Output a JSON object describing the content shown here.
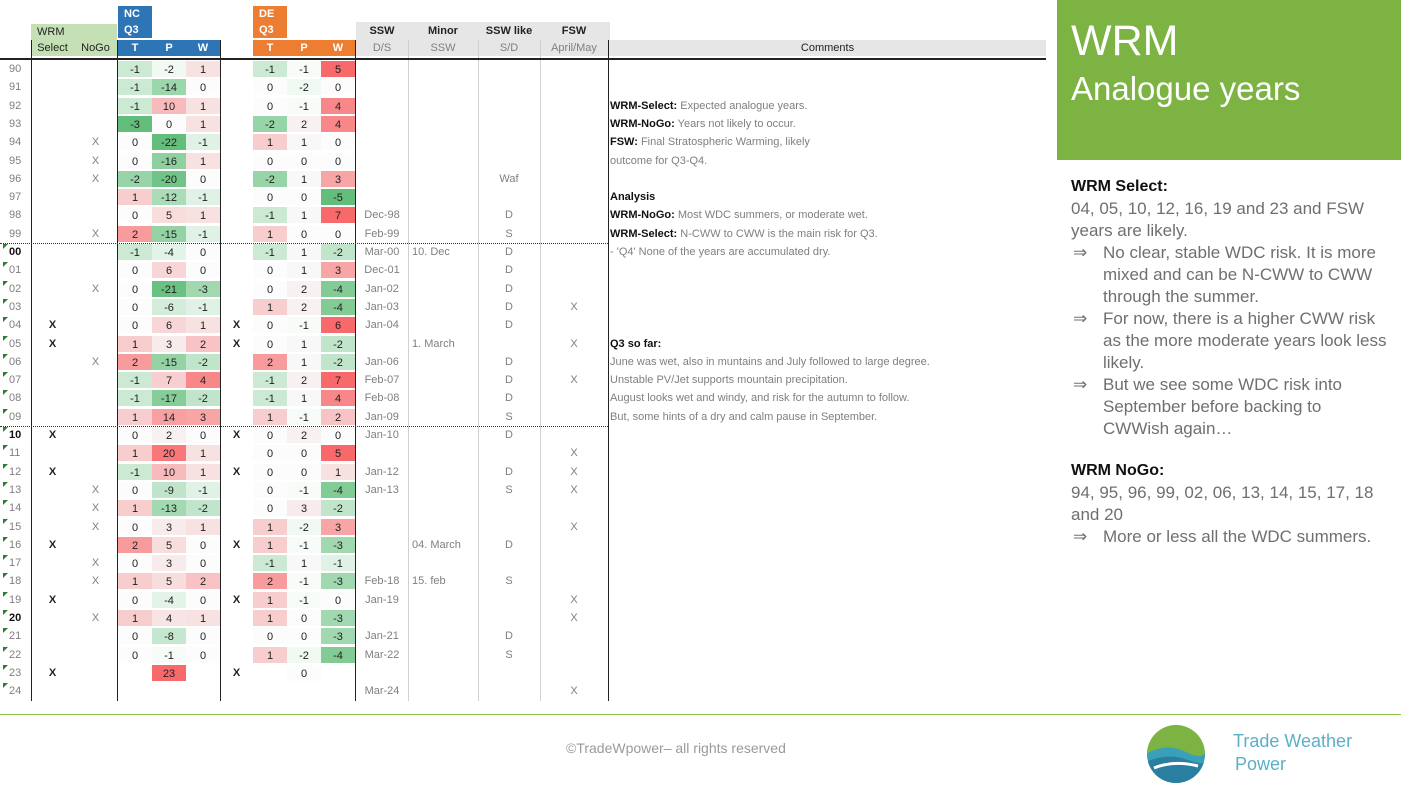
{
  "header": {
    "wrm": "WRM",
    "select": "Select",
    "nogo": "NoGo",
    "nc": "NC",
    "de": "DE",
    "q3": "Q3",
    "t": "T",
    "p": "P",
    "w": "W",
    "ssw": "SSW",
    "ssw_sub": "D/S",
    "minor": "Minor",
    "minor_sub": "SSW",
    "sswlike": "SSW like",
    "sswlike_sub": "S/D",
    "fsw": "FSW",
    "fsw_sub": "April/May",
    "comments": "Comments"
  },
  "colors": {
    "nc_header": "#2e75b6",
    "de_header": "#ed7d31",
    "wrm_header": "#c5e0b4",
    "dry": "#63be7b",
    "wet": "#f8696b",
    "accent": "#7cb342"
  },
  "rows": [
    {
      "year": "90",
      "sel": "",
      "nogo": "",
      "nc": [
        "-1",
        "-2",
        "1"
      ],
      "dsel": "",
      "de": [
        "-1",
        "-1",
        "5"
      ],
      "ssw": "",
      "minor": "",
      "sswlike": "",
      "fsw": ""
    },
    {
      "year": "91",
      "sel": "",
      "nogo": "",
      "nc": [
        "-1",
        "-14",
        "0"
      ],
      "dsel": "",
      "de": [
        "0",
        "-2",
        "0"
      ],
      "ssw": "",
      "minor": "",
      "sswlike": "",
      "fsw": ""
    },
    {
      "year": "92",
      "sel": "",
      "nogo": "",
      "nc": [
        "-1",
        "10",
        "1"
      ],
      "dsel": "",
      "de": [
        "0",
        "-1",
        "4"
      ],
      "ssw": "",
      "minor": "",
      "sswlike": "",
      "fsw": ""
    },
    {
      "year": "93",
      "sel": "",
      "nogo": "",
      "nc": [
        "-3",
        "0",
        "1"
      ],
      "dsel": "",
      "de": [
        "-2",
        "2",
        "4"
      ],
      "ssw": "",
      "minor": "",
      "sswlike": "",
      "fsw": ""
    },
    {
      "year": "94",
      "sel": "",
      "nogo": "X",
      "nc": [
        "0",
        "-22",
        "-1"
      ],
      "dsel": "",
      "de": [
        "1",
        "1",
        "0"
      ],
      "ssw": "",
      "minor": "",
      "sswlike": "",
      "fsw": ""
    },
    {
      "year": "95",
      "sel": "",
      "nogo": "X",
      "nc": [
        "0",
        "-16",
        "1"
      ],
      "dsel": "",
      "de": [
        "0",
        "0",
        "0"
      ],
      "ssw": "",
      "minor": "",
      "sswlike": "",
      "fsw": ""
    },
    {
      "year": "96",
      "sel": "",
      "nogo": "X",
      "nc": [
        "-2",
        "-20",
        "0"
      ],
      "dsel": "",
      "de": [
        "-2",
        "1",
        "3"
      ],
      "ssw": "",
      "minor": "",
      "sswlike": "Waf",
      "fsw": ""
    },
    {
      "year": "97",
      "sel": "",
      "nogo": "",
      "nc": [
        "1",
        "-12",
        "-1"
      ],
      "dsel": "",
      "de": [
        "0",
        "0",
        "-5"
      ],
      "ssw": "",
      "minor": "",
      "sswlike": "",
      "fsw": ""
    },
    {
      "year": "98",
      "sel": "",
      "nogo": "",
      "nc": [
        "0",
        "5",
        "1"
      ],
      "dsel": "",
      "de": [
        "-1",
        "1",
        "7"
      ],
      "ssw": "Dec-98",
      "minor": "",
      "sswlike": "D",
      "fsw": ""
    },
    {
      "year": "99",
      "sel": "",
      "nogo": "X",
      "nc": [
        "2",
        "-15",
        "-1"
      ],
      "dsel": "",
      "de": [
        "1",
        "0",
        "0"
      ],
      "ssw": "Feb-99",
      "minor": "",
      "sswlike": "S",
      "fsw": ""
    },
    {
      "year": "00",
      "sel": "",
      "nogo": "",
      "nc": [
        "-1",
        "-4",
        "0"
      ],
      "dsel": "",
      "de": [
        "-1",
        "1",
        "-2"
      ],
      "ssw": "Mar-00",
      "minor": "10. Dec",
      "sswlike": "D",
      "fsw": ""
    },
    {
      "year": "01",
      "sel": "",
      "nogo": "",
      "nc": [
        "0",
        "6",
        "0"
      ],
      "dsel": "",
      "de": [
        "0",
        "1",
        "3"
      ],
      "ssw": "Dec-01",
      "minor": "",
      "sswlike": "D",
      "fsw": ""
    },
    {
      "year": "02",
      "sel": "",
      "nogo": "X",
      "nc": [
        "0",
        "-21",
        "-3"
      ],
      "dsel": "",
      "de": [
        "0",
        "2",
        "-4"
      ],
      "ssw": "Jan-02",
      "minor": "",
      "sswlike": "D",
      "fsw": ""
    },
    {
      "year": "03",
      "sel": "",
      "nogo": "",
      "nc": [
        "0",
        "-6",
        "-1"
      ],
      "dsel": "",
      "de": [
        "1",
        "2",
        "-4"
      ],
      "ssw": "Jan-03",
      "minor": "",
      "sswlike": "D",
      "fsw": "X"
    },
    {
      "year": "04",
      "sel": "X",
      "nogo": "",
      "nc": [
        "0",
        "6",
        "1"
      ],
      "dsel": "X",
      "de": [
        "0",
        "-1",
        "6"
      ],
      "ssw": "Jan-04",
      "minor": "",
      "sswlike": "D",
      "fsw": ""
    },
    {
      "year": "05",
      "sel": "X",
      "nogo": "",
      "nc": [
        "1",
        "3",
        "2"
      ],
      "dsel": "X",
      "de": [
        "0",
        "1",
        "-2"
      ],
      "ssw": "",
      "minor": "1. March",
      "sswlike": "",
      "fsw": "X"
    },
    {
      "year": "06",
      "sel": "",
      "nogo": "X",
      "nc": [
        "2",
        "-15",
        "-2"
      ],
      "dsel": "",
      "de": [
        "2",
        "1",
        "-2"
      ],
      "ssw": "Jan-06",
      "minor": "",
      "sswlike": "D",
      "fsw": ""
    },
    {
      "year": "07",
      "sel": "",
      "nogo": "",
      "nc": [
        "-1",
        "7",
        "4"
      ],
      "dsel": "",
      "de": [
        "-1",
        "2",
        "7"
      ],
      "ssw": "Feb-07",
      "minor": "",
      "sswlike": "D",
      "fsw": "X"
    },
    {
      "year": "08",
      "sel": "",
      "nogo": "",
      "nc": [
        "-1",
        "-17",
        "-2"
      ],
      "dsel": "",
      "de": [
        "-1",
        "1",
        "4"
      ],
      "ssw": "Feb-08",
      "minor": "",
      "sswlike": "D",
      "fsw": ""
    },
    {
      "year": "09",
      "sel": "",
      "nogo": "",
      "nc": [
        "1",
        "14",
        "3"
      ],
      "dsel": "",
      "de": [
        "1",
        "-1",
        "2"
      ],
      "ssw": "Jan-09",
      "minor": "",
      "sswlike": "S",
      "fsw": ""
    },
    {
      "year": "10",
      "sel": "X",
      "nogo": "",
      "nc": [
        "0",
        "2",
        "0"
      ],
      "dsel": "X",
      "de": [
        "0",
        "2",
        "0"
      ],
      "ssw": "Jan-10",
      "minor": "",
      "sswlike": "D",
      "fsw": ""
    },
    {
      "year": "11",
      "sel": "",
      "nogo": "",
      "nc": [
        "1",
        "20",
        "1"
      ],
      "dsel": "",
      "de": [
        "0",
        "0",
        "5"
      ],
      "ssw": "",
      "minor": "",
      "sswlike": "",
      "fsw": "X"
    },
    {
      "year": "12",
      "sel": "X",
      "nogo": "",
      "nc": [
        "-1",
        "10",
        "1"
      ],
      "dsel": "X",
      "de": [
        "0",
        "0",
        "1"
      ],
      "ssw": "Jan-12",
      "minor": "",
      "sswlike": "D",
      "fsw": "X"
    },
    {
      "year": "13",
      "sel": "",
      "nogo": "X",
      "nc": [
        "0",
        "-9",
        "-1"
      ],
      "dsel": "",
      "de": [
        "0",
        "-1",
        "-4"
      ],
      "ssw": "Jan-13",
      "minor": "",
      "sswlike": "S",
      "fsw": "X"
    },
    {
      "year": "14",
      "sel": "",
      "nogo": "X",
      "nc": [
        "1",
        "-13",
        "-2"
      ],
      "dsel": "",
      "de": [
        "0",
        "3",
        "-2"
      ],
      "ssw": "",
      "minor": "",
      "sswlike": "",
      "fsw": ""
    },
    {
      "year": "15",
      "sel": "",
      "nogo": "X",
      "nc": [
        "0",
        "3",
        "1"
      ],
      "dsel": "",
      "de": [
        "1",
        "-2",
        "3"
      ],
      "ssw": "",
      "minor": "",
      "sswlike": "",
      "fsw": "X"
    },
    {
      "year": "16",
      "sel": "X",
      "nogo": "",
      "nc": [
        "2",
        "5",
        "0"
      ],
      "dsel": "X",
      "de": [
        "1",
        "-1",
        "-3"
      ],
      "ssw": "",
      "minor": "04. March",
      "sswlike": "D",
      "fsw": ""
    },
    {
      "year": "17",
      "sel": "",
      "nogo": "X",
      "nc": [
        "0",
        "3",
        "0"
      ],
      "dsel": "",
      "de": [
        "-1",
        "1",
        "-1"
      ],
      "ssw": "",
      "minor": "",
      "sswlike": "",
      "fsw": ""
    },
    {
      "year": "18",
      "sel": "",
      "nogo": "X",
      "nc": [
        "1",
        "5",
        "2"
      ],
      "dsel": "",
      "de": [
        "2",
        "-1",
        "-3"
      ],
      "ssw": "Feb-18",
      "minor": "15. feb",
      "sswlike": "S",
      "fsw": ""
    },
    {
      "year": "19",
      "sel": "X",
      "nogo": "",
      "nc": [
        "0",
        "-4",
        "0"
      ],
      "dsel": "X",
      "de": [
        "1",
        "-1",
        "0"
      ],
      "ssw": "Jan-19",
      "minor": "",
      "sswlike": "",
      "fsw": "X"
    },
    {
      "year": "20",
      "sel": "",
      "nogo": "X",
      "nc": [
        "1",
        "4",
        "1"
      ],
      "dsel": "",
      "de": [
        "1",
        "0",
        "-3"
      ],
      "ssw": "",
      "minor": "",
      "sswlike": "",
      "fsw": "X"
    },
    {
      "year": "21",
      "sel": "",
      "nogo": "",
      "nc": [
        "0",
        "-8",
        "0"
      ],
      "dsel": "",
      "de": [
        "0",
        "0",
        "-3"
      ],
      "ssw": "Jan-21",
      "minor": "",
      "sswlike": "D",
      "fsw": ""
    },
    {
      "year": "22",
      "sel": "",
      "nogo": "",
      "nc": [
        "0",
        "-1",
        "0"
      ],
      "dsel": "",
      "de": [
        "1",
        "-2",
        "-4"
      ],
      "ssw": "Mar-22",
      "minor": "",
      "sswlike": "S",
      "fsw": ""
    },
    {
      "year": "23",
      "sel": "X",
      "nogo": "",
      "nc": [
        "",
        "23",
        ""
      ],
      "dsel": "X",
      "de": [
        "",
        "0",
        ""
      ],
      "ssw": "",
      "minor": "",
      "sswlike": "",
      "fsw": ""
    },
    {
      "year": "24",
      "sel": "",
      "nogo": "",
      "nc": [
        "",
        "",
        ""
      ],
      "dsel": "",
      "de": [
        "",
        "",
        ""
      ],
      "ssw": "Mar-24",
      "minor": "",
      "sswlike": "",
      "fsw": "X"
    }
  ],
  "comments": [
    {
      "row": 2,
      "bold": "WRM-Select:",
      "text": " Expected analogue years."
    },
    {
      "row": 3,
      "bold": "WRM-NoGo:",
      "text": " Years not likely to occur."
    },
    {
      "row": 4,
      "bold": "FSW:",
      "text": " Final Stratospheric Warming, likely"
    },
    {
      "row": 5,
      "bold": "",
      "text": "outcome for Q3-Q4."
    },
    {
      "row": 7,
      "bold": "Analysis",
      "text": ""
    },
    {
      "row": 8,
      "bold": "WRM-NoGo:",
      "text": " Most WDC summers, or moderate wet."
    },
    {
      "row": 9,
      "bold": "WRM-Select:",
      "text": " N-CWW to CWW is the main risk for Q3."
    },
    {
      "row": 10,
      "bold": "",
      "text": "- 'Q4' None of the years are accumulated dry."
    },
    {
      "row": 15,
      "bold": "Q3 so far:",
      "text": ""
    },
    {
      "row": 16,
      "bold": "",
      "text": "June was wet, also in muntains and July followed to large degree."
    },
    {
      "row": 17,
      "bold": "",
      "text": "Unstable PV/Jet supports mountain precipitation."
    },
    {
      "row": 18,
      "bold": "",
      "text": "August looks wet and windy, and risk for the autumn to follow."
    },
    {
      "row": 19,
      "bold": "",
      "text": "But, some hints of a dry and calm pause in September."
    }
  ],
  "panel": {
    "title1": "WRM",
    "title2": "Analogue years"
  },
  "side": {
    "select_title": "WRM Select:",
    "select_text": "04, 05, 10, 12, 16, 19 and 23 and FSW years are likely.",
    "select_points": [
      "No clear, stable WDC risk. It is more mixed and can be N-CWW to CWW through the summer.",
      "For now, there is a higher CWW risk as the more moderate years look less likely.",
      "But we see some WDC risk into September before backing to CWWish again…"
    ],
    "nogo_title": "WRM NoGo:",
    "nogo_text": "94, 95, 96, 99, 02, 06, 13, 14, 15, 17, 18 and 20",
    "nogo_points": [
      "More or less all the WDC summers."
    ],
    "arrow": "⇒"
  },
  "footer": {
    "copyright": "©TradeWpower– all rights reserved",
    "brand_line1": "Trade Weather",
    "brand_line2": "Power"
  }
}
